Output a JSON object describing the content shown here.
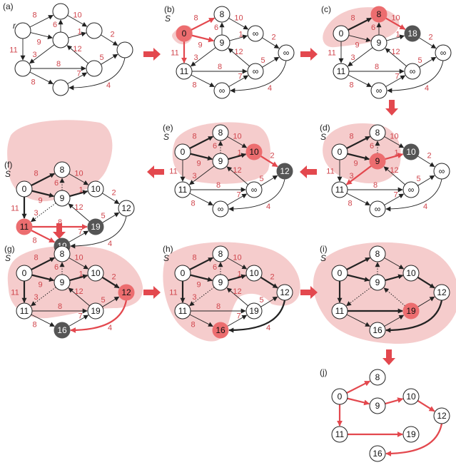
{
  "colors": {
    "accent": "#e3484e",
    "cloud": "#f5cccc",
    "highlight_node": "#ec6d6f",
    "dark_node": "#555555",
    "weight": "#d0454c"
  },
  "labels": {
    "root": "r",
    "set": "S",
    "inf": "∞"
  },
  "panels": [
    {
      "id": "a",
      "label": "(a)",
      "show_r": true,
      "show_s": false,
      "show_w": true,
      "nodes": {
        "r": "",
        "p": "",
        "q": "",
        "c": "",
        "d": "",
        "e": "",
        "f": "",
        "g": "",
        "h": ""
      },
      "node_state": {},
      "edge_style": {}
    },
    {
      "id": "b",
      "label": "(b)",
      "show_r": false,
      "show_s": true,
      "show_w": true,
      "nodes": {
        "r": "0",
        "p": "8",
        "q": "∞",
        "c": "9",
        "d": "∞",
        "e": "11",
        "f": "∞",
        "g": "∞",
        "h": ""
      },
      "node_state": {
        "r": "hl"
      },
      "edge_style": {
        "rp": "red",
        "rc": "red",
        "re": "red"
      }
    },
    {
      "id": "c",
      "label": "(c)",
      "show_r": false,
      "show_s": false,
      "show_w": true,
      "nodes": {
        "r": "0",
        "p": "8",
        "q": "18",
        "c": "9",
        "d": "∞",
        "e": "11",
        "f": "∞",
        "g": "∞",
        "h": ""
      },
      "node_state": {
        "p": "hl",
        "q": "dark"
      },
      "edge_style": {
        "rp": "bold",
        "pq": "red"
      }
    },
    {
      "id": "d",
      "label": "(d)",
      "show_r": false,
      "show_s": true,
      "show_w": true,
      "nodes": {
        "r": "0",
        "p": "8",
        "q": "10",
        "c": "9",
        "d": "∞",
        "e": "11",
        "f": "∞",
        "g": "∞",
        "h": ""
      },
      "node_state": {
        "c": "hl",
        "q": "dark"
      },
      "edge_style": {
        "rp": "bold",
        "rc": "bold",
        "cp": "dotted",
        "cq": "red",
        "ce": "red"
      }
    },
    {
      "id": "e",
      "label": "(e)",
      "show_r": false,
      "show_s": true,
      "show_w": true,
      "nodes": {
        "r": "0",
        "p": "8",
        "q": "10",
        "c": "9",
        "d": "12",
        "e": "11",
        "f": "∞",
        "g": "∞",
        "h": ""
      },
      "node_state": {
        "q": "hl",
        "d": "dark"
      },
      "edge_style": {
        "rp": "bold",
        "rc": "bold",
        "cq": "bold",
        "cp": "dotted",
        "qd": "red"
      }
    },
    {
      "id": "f",
      "label": "(f)",
      "show_r": false,
      "show_s": true,
      "show_w": true,
      "nodes": {
        "r": "0",
        "p": "8",
        "q": "10",
        "c": "9",
        "d": "12",
        "e": "11",
        "f": "19",
        "g": "19",
        "h": ""
      },
      "node_state": {
        "e": "hl",
        "f": "dark",
        "g": "dark"
      },
      "edge_style": {
        "rp": "bold",
        "rc": "bold",
        "cq": "bold",
        "re": "bold",
        "cp": "dotted",
        "ce": "dotted",
        "ef": "red",
        "eg": "red"
      }
    },
    {
      "id": "g",
      "label": "(g)",
      "show_r": false,
      "show_s": true,
      "show_w": true,
      "nodes": {
        "r": "0",
        "p": "8",
        "q": "10",
        "c": "9",
        "d": "12",
        "e": "11",
        "f": "19",
        "g": "16",
        "h": ""
      },
      "node_state": {
        "d": "hl",
        "g": "dark"
      },
      "edge_style": {
        "rp": "bold",
        "rc": "bold",
        "cq": "bold",
        "re": "bold",
        "qd": "bold",
        "cp": "dotted",
        "ce": "dotted",
        "dg": "red"
      }
    },
    {
      "id": "h",
      "label": "(h)",
      "show_r": false,
      "show_s": true,
      "show_w": true,
      "nodes": {
        "r": "0",
        "p": "8",
        "q": "10",
        "c": "9",
        "d": "12",
        "e": "11",
        "f": "19",
        "g": "16",
        "h": ""
      },
      "node_state": {
        "g": "hl"
      },
      "edge_style": {
        "rp": "bold",
        "rc": "bold",
        "cq": "bold",
        "re": "bold",
        "qd": "bold",
        "dg": "bold",
        "cp": "dotted",
        "ce": "dotted"
      }
    },
    {
      "id": "i",
      "label": "(i)",
      "show_r": false,
      "show_s": true,
      "show_w": false,
      "nodes": {
        "r": "0",
        "p": "8",
        "q": "10",
        "c": "9",
        "d": "12",
        "e": "11",
        "f": "19",
        "g": "16",
        "h": ""
      },
      "node_state": {
        "f": "hl"
      },
      "edge_style": {
        "rp": "bold",
        "rc": "bold",
        "cq": "bold",
        "re": "bold",
        "qd": "bold",
        "dg": "bold",
        "ef": "bold",
        "cp": "dotted",
        "ce": "dotted",
        "fc": "dotted"
      }
    },
    {
      "id": "j",
      "label": "(j)",
      "show_r": false,
      "show_s": false,
      "show_w": false,
      "tree": true,
      "nodes": {
        "r": "0",
        "p": "8",
        "q": "10",
        "c": "9",
        "d": "12",
        "e": "11",
        "f": "19",
        "g": "16"
      },
      "node_state": {},
      "edge_style": {}
    }
  ],
  "edges": [
    {
      "id": "rp",
      "from": "r",
      "to": "p",
      "w": "8"
    },
    {
      "id": "rc",
      "from": "r",
      "to": "c",
      "w": "9"
    },
    {
      "id": "re",
      "from": "r",
      "to": "e",
      "w": "11"
    },
    {
      "id": "pq",
      "from": "p",
      "to": "q",
      "w": "10"
    },
    {
      "id": "cp",
      "from": "c",
      "to": "p",
      "w": "6"
    },
    {
      "id": "cq",
      "from": "c",
      "to": "q",
      "w": "1"
    },
    {
      "id": "ce",
      "from": "c",
      "to": "e",
      "w": "3"
    },
    {
      "id": "fc",
      "from": "f",
      "to": "c",
      "w": "12"
    },
    {
      "id": "qd",
      "from": "q",
      "to": "d",
      "w": "2"
    },
    {
      "id": "fd",
      "from": "f",
      "to": "d",
      "w": "5"
    },
    {
      "id": "ef",
      "from": "e",
      "to": "f",
      "w": "8"
    },
    {
      "id": "eg",
      "from": "e",
      "to": "g",
      "w": "8"
    },
    {
      "id": "gf",
      "from": "g",
      "to": "f",
      "w": "7"
    },
    {
      "id": "dg",
      "from": "d",
      "to": "g",
      "w": "4"
    }
  ],
  "tree_edges": [
    {
      "from": "r",
      "to": "p"
    },
    {
      "from": "r",
      "to": "c"
    },
    {
      "from": "r",
      "to": "e"
    },
    {
      "from": "c",
      "to": "q"
    },
    {
      "from": "q",
      "to": "d"
    },
    {
      "from": "e",
      "to": "f"
    },
    {
      "from": "d",
      "to": "g"
    }
  ]
}
